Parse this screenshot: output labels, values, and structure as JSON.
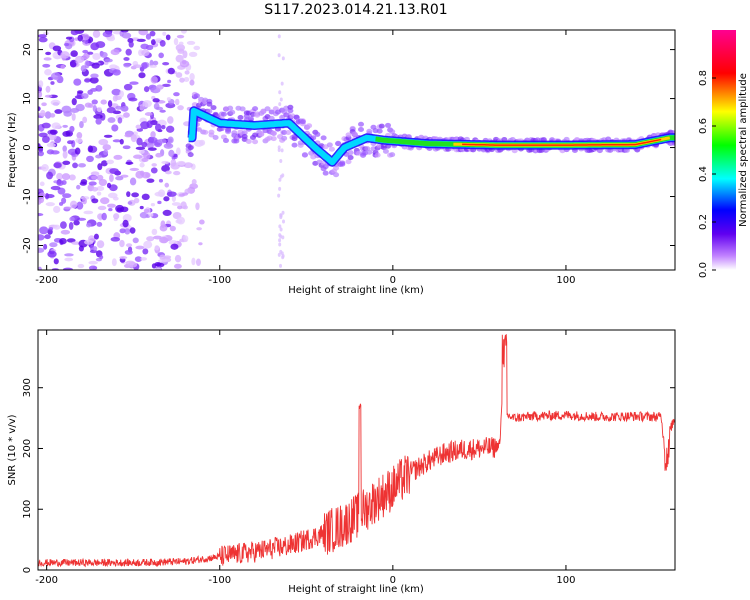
{
  "title": "S117.2023.014.21.13.R01",
  "chart_data": [
    {
      "type": "heatmap",
      "xlabel": "Height of straight line (km)",
      "ylabel": "Frequency (Hz)",
      "xlim": [
        -205,
        163
      ],
      "ylim": [
        -25,
        24
      ],
      "x_ticks": [
        -200,
        -100,
        0,
        100
      ],
      "y_ticks": [
        -20,
        -10,
        0,
        10,
        20
      ],
      "colorbar": {
        "label": "Normalized spectral amplitude",
        "range": [
          0,
          1
        ],
        "ticks": [
          0.0,
          0.2,
          0.4,
          0.6,
          0.8
        ]
      },
      "ridge": [
        {
          "x": -115,
          "y": 7.5
        },
        {
          "x": -100,
          "y": 5
        },
        {
          "x": -80,
          "y": 4.5
        },
        {
          "x": -60,
          "y": 5
        },
        {
          "x": -45,
          "y": 0
        },
        {
          "x": -35,
          "y": -3
        },
        {
          "x": -28,
          "y": 0
        },
        {
          "x": -15,
          "y": 2
        },
        {
          "x": -5,
          "y": 1.5
        },
        {
          "x": 20,
          "y": 0.8
        },
        {
          "x": 60,
          "y": 0.5
        },
        {
          "x": 100,
          "y": 0.5
        },
        {
          "x": 140,
          "y": 0.6
        },
        {
          "x": 160,
          "y": 2
        }
      ]
    },
    {
      "type": "line",
      "xlabel": "Height of straight line (km)",
      "ylabel": "SNR (10 * v/v)",
      "xlim": [
        -205,
        163
      ],
      "ylim": [
        0,
        395
      ],
      "x_ticks": [
        -200,
        -100,
        0,
        100
      ],
      "y_ticks": [
        0,
        100,
        200,
        300
      ],
      "color": "#ee3333",
      "series": [
        {
          "x": [
            -205,
            -180,
            -150,
            -120,
            -100,
            -80,
            -60,
            -50,
            -40,
            -30,
            -20,
            -10,
            0,
            10,
            20,
            30,
            40,
            50,
            60,
            62,
            64,
            66,
            70,
            80,
            100,
            120,
            140,
            155,
            158,
            160,
            163
          ],
          "y": [
            12,
            12,
            12,
            14,
            22,
            30,
            40,
            50,
            60,
            72,
            90,
            115,
            135,
            160,
            178,
            192,
            198,
            200,
            202,
            212,
            340,
            255,
            250,
            253,
            255,
            252,
            253,
            252,
            175,
            230,
            250
          ]
        }
      ]
    }
  ]
}
